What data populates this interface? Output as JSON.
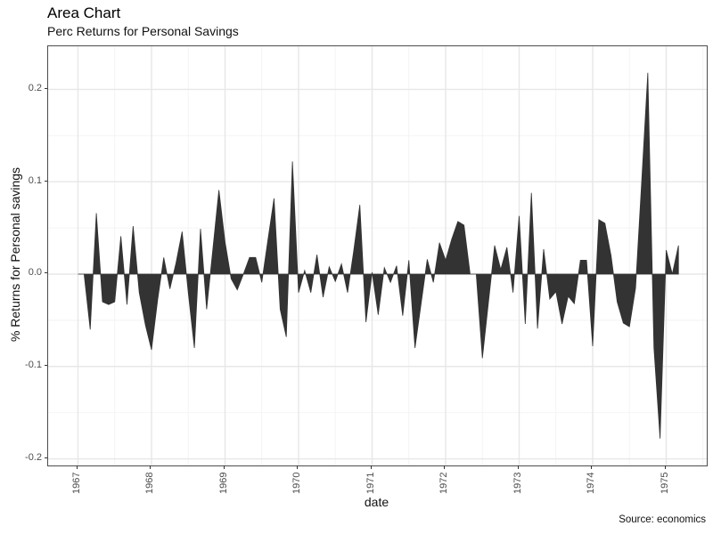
{
  "header": {
    "title": "Area Chart",
    "subtitle": "Perc Returns for Personal Savings"
  },
  "caption": "Source: economics",
  "colors": {
    "area_fill": "#333333",
    "panel_background": "#ffffff",
    "panel_border": "#4d4d4d",
    "grid_major": "#e7e7e7",
    "grid_minor": "#f3f3f3",
    "tick_mark": "#333333",
    "tick_label": "#4d4d4d",
    "text": "#111111"
  },
  "chart_data": {
    "type": "area",
    "title": "Area Chart",
    "subtitle": "Perc Returns for Personal Savings",
    "xlabel": "date",
    "ylabel": "% Returns for Personal savings",
    "caption": "Source: economics",
    "x_unit": "month",
    "grid": true,
    "legend": false,
    "fill_color": "#333333",
    "x_tick_labels": [
      "1967",
      "1968",
      "1969",
      "1970",
      "1971",
      "1972",
      "1973",
      "1974",
      "1975"
    ],
    "x_tick_positions": [
      0,
      12,
      24,
      36,
      48,
      60,
      72,
      84,
      96
    ],
    "x_minor_positions": [
      6,
      18,
      30,
      42,
      54,
      66,
      78,
      90,
      102
    ],
    "xlim": [
      -4.87,
      102.62
    ],
    "y_tick_labels": [
      "-0.2",
      "-0.1",
      "0.0",
      "0.1",
      "0.2"
    ],
    "y_tick_values": [
      -0.2,
      -0.1,
      0.0,
      0.1,
      0.2
    ],
    "y_minor_values": [
      -0.15,
      -0.05,
      0.05,
      0.15
    ],
    "ylim": [
      -0.2072,
      0.2467
    ],
    "baseline": 0.0,
    "values": [
      0.0,
      0.0,
      -0.06,
      0.066,
      -0.03,
      -0.033,
      -0.03,
      0.041,
      -0.033,
      0.052,
      -0.02,
      -0.055,
      -0.082,
      -0.028,
      0.018,
      -0.016,
      0.012,
      0.046,
      -0.02,
      -0.08,
      0.049,
      -0.038,
      0.026,
      0.091,
      0.035,
      -0.005,
      -0.017,
      0.0,
      0.018,
      0.018,
      -0.009,
      0.037,
      0.082,
      -0.038,
      -0.068,
      0.122,
      -0.02,
      0.004,
      -0.02,
      0.021,
      -0.025,
      0.008,
      -0.008,
      0.011,
      -0.02,
      0.025,
      0.075,
      -0.052,
      0.002,
      -0.044,
      0.007,
      -0.009,
      0.009,
      -0.045,
      0.015,
      -0.08,
      -0.032,
      0.016,
      -0.009,
      0.034,
      0.015,
      0.038,
      0.057,
      0.053,
      0.0,
      0.0,
      -0.091,
      -0.03,
      0.031,
      0.005,
      0.029,
      -0.02,
      0.063,
      -0.054,
      0.088,
      -0.059,
      0.027,
      -0.027,
      -0.019,
      -0.054,
      -0.024,
      -0.032,
      0.015,
      0.015,
      -0.078,
      0.059,
      0.055,
      0.02,
      -0.03,
      -0.053,
      -0.057,
      -0.015,
      0.1,
      0.218,
      -0.08,
      -0.178,
      0.026,
      0.0,
      0.031
    ]
  }
}
